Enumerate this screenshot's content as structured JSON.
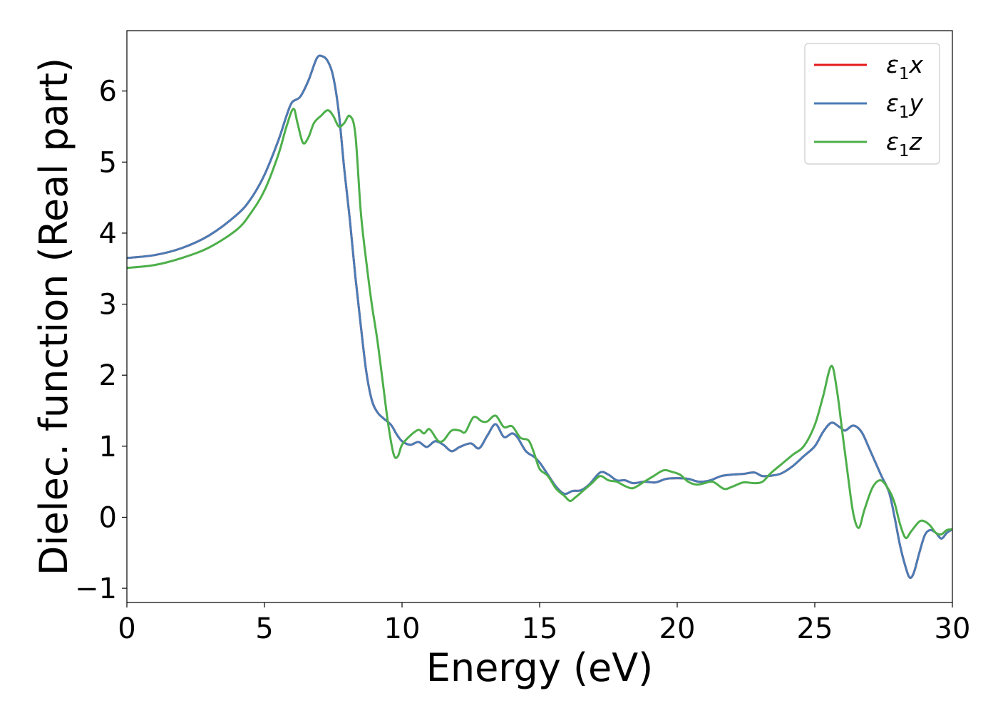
{
  "chart_data": {
    "type": "line",
    "xlabel": "Energy (eV)",
    "ylabel": "Dielec. function (Real part)",
    "xlim": [
      0,
      30
    ],
    "ylim": [
      -1.2,
      6.85
    ],
    "xticks": [
      0,
      5,
      10,
      15,
      20,
      25,
      30
    ],
    "yticks": [
      -1,
      0,
      1,
      2,
      3,
      4,
      5,
      6
    ],
    "xtick_labels": [
      "0",
      "5",
      "10",
      "15",
      "20",
      "25",
      "30"
    ],
    "ytick_labels": [
      "−1",
      "0",
      "1",
      "2",
      "3",
      "4",
      "5",
      "6"
    ],
    "grid": false,
    "legend_position": "top-right",
    "series": [
      {
        "name": "ε₁x",
        "legend_main": "ε",
        "legend_sub": "1",
        "legend_tail": "x",
        "color": "#e41a1c",
        "points": [
          [
            0,
            3.65
          ],
          [
            1,
            3.69
          ],
          [
            2,
            3.79
          ],
          [
            3,
            3.97
          ],
          [
            4,
            4.26
          ],
          [
            4.5,
            4.48
          ],
          [
            5,
            4.82
          ],
          [
            5.5,
            5.3
          ],
          [
            5.8,
            5.65
          ],
          [
            6,
            5.84
          ],
          [
            6.3,
            5.92
          ],
          [
            6.6,
            6.15
          ],
          [
            6.9,
            6.46
          ],
          [
            7.1,
            6.49
          ],
          [
            7.3,
            6.42
          ],
          [
            7.5,
            6.2
          ],
          [
            7.7,
            5.7
          ],
          [
            7.9,
            4.9
          ],
          [
            8.1,
            4.2
          ],
          [
            8.3,
            3.4
          ],
          [
            8.5,
            2.7
          ],
          [
            8.7,
            2.05
          ],
          [
            8.9,
            1.65
          ],
          [
            9.1,
            1.48
          ],
          [
            9.3,
            1.4
          ],
          [
            9.6,
            1.3
          ],
          [
            9.8,
            1.17
          ],
          [
            10,
            1.07
          ],
          [
            10.3,
            1.02
          ],
          [
            10.6,
            1.06
          ],
          [
            10.9,
            0.99
          ],
          [
            11.2,
            1.07
          ],
          [
            11.5,
            1.02
          ],
          [
            11.8,
            0.93
          ],
          [
            12.1,
            0.99
          ],
          [
            12.5,
            1.04
          ],
          [
            12.8,
            0.97
          ],
          [
            13.1,
            1.15
          ],
          [
            13.4,
            1.31
          ],
          [
            13.7,
            1.13
          ],
          [
            14,
            1.18
          ],
          [
            14.2,
            1.12
          ],
          [
            14.5,
            0.93
          ],
          [
            14.8,
            0.85
          ],
          [
            15,
            0.77
          ],
          [
            15.3,
            0.6
          ],
          [
            15.6,
            0.43
          ],
          [
            15.9,
            0.33
          ],
          [
            16.2,
            0.37
          ],
          [
            16.5,
            0.38
          ],
          [
            16.8,
            0.46
          ],
          [
            17.2,
            0.63
          ],
          [
            17.5,
            0.6
          ],
          [
            17.8,
            0.52
          ],
          [
            18.1,
            0.52
          ],
          [
            18.4,
            0.48
          ],
          [
            18.8,
            0.5
          ],
          [
            19.2,
            0.49
          ],
          [
            19.6,
            0.54
          ],
          [
            20,
            0.55
          ],
          [
            20.4,
            0.54
          ],
          [
            20.8,
            0.5
          ],
          [
            21.2,
            0.52
          ],
          [
            21.6,
            0.58
          ],
          [
            22,
            0.6
          ],
          [
            22.4,
            0.61
          ],
          [
            22.8,
            0.63
          ],
          [
            23.1,
            0.58
          ],
          [
            23.5,
            0.59
          ],
          [
            23.8,
            0.62
          ],
          [
            24.2,
            0.72
          ],
          [
            24.6,
            0.86
          ],
          [
            25,
            1.0
          ],
          [
            25.3,
            1.2
          ],
          [
            25.6,
            1.33
          ],
          [
            25.9,
            1.27
          ],
          [
            26.1,
            1.22
          ],
          [
            26.4,
            1.29
          ],
          [
            26.7,
            1.2
          ],
          [
            27,
            0.95
          ],
          [
            27.4,
            0.6
          ],
          [
            27.7,
            0.35
          ],
          [
            27.9,
            0.0
          ],
          [
            28.1,
            -0.4
          ],
          [
            28.3,
            -0.7
          ],
          [
            28.45,
            -0.85
          ],
          [
            28.6,
            -0.78
          ],
          [
            28.8,
            -0.5
          ],
          [
            29,
            -0.25
          ],
          [
            29.2,
            -0.18
          ],
          [
            29.4,
            -0.22
          ],
          [
            29.6,
            -0.3
          ],
          [
            29.8,
            -0.22
          ],
          [
            30,
            -0.17
          ]
        ]
      },
      {
        "name": "ε₁y",
        "legend_main": "ε",
        "legend_sub": "1",
        "legend_tail": "y",
        "color": "#4a7cb5",
        "points": [
          [
            0,
            3.65
          ],
          [
            1,
            3.69
          ],
          [
            2,
            3.79
          ],
          [
            3,
            3.97
          ],
          [
            4,
            4.26
          ],
          [
            4.5,
            4.48
          ],
          [
            5,
            4.82
          ],
          [
            5.5,
            5.3
          ],
          [
            5.8,
            5.65
          ],
          [
            6,
            5.84
          ],
          [
            6.3,
            5.92
          ],
          [
            6.6,
            6.15
          ],
          [
            6.9,
            6.46
          ],
          [
            7.1,
            6.49
          ],
          [
            7.3,
            6.42
          ],
          [
            7.5,
            6.2
          ],
          [
            7.7,
            5.7
          ],
          [
            7.9,
            4.9
          ],
          [
            8.1,
            4.2
          ],
          [
            8.3,
            3.4
          ],
          [
            8.5,
            2.7
          ],
          [
            8.7,
            2.05
          ],
          [
            8.9,
            1.65
          ],
          [
            9.1,
            1.48
          ],
          [
            9.3,
            1.4
          ],
          [
            9.6,
            1.3
          ],
          [
            9.8,
            1.17
          ],
          [
            10,
            1.07
          ],
          [
            10.3,
            1.02
          ],
          [
            10.6,
            1.06
          ],
          [
            10.9,
            0.99
          ],
          [
            11.2,
            1.07
          ],
          [
            11.5,
            1.02
          ],
          [
            11.8,
            0.93
          ],
          [
            12.1,
            0.99
          ],
          [
            12.5,
            1.04
          ],
          [
            12.8,
            0.97
          ],
          [
            13.1,
            1.15
          ],
          [
            13.4,
            1.31
          ],
          [
            13.7,
            1.13
          ],
          [
            14,
            1.18
          ],
          [
            14.2,
            1.12
          ],
          [
            14.5,
            0.93
          ],
          [
            14.8,
            0.85
          ],
          [
            15,
            0.77
          ],
          [
            15.3,
            0.6
          ],
          [
            15.6,
            0.43
          ],
          [
            15.9,
            0.33
          ],
          [
            16.2,
            0.37
          ],
          [
            16.5,
            0.38
          ],
          [
            16.8,
            0.46
          ],
          [
            17.2,
            0.63
          ],
          [
            17.5,
            0.6
          ],
          [
            17.8,
            0.52
          ],
          [
            18.1,
            0.52
          ],
          [
            18.4,
            0.48
          ],
          [
            18.8,
            0.5
          ],
          [
            19.2,
            0.49
          ],
          [
            19.6,
            0.54
          ],
          [
            20,
            0.55
          ],
          [
            20.4,
            0.54
          ],
          [
            20.8,
            0.5
          ],
          [
            21.2,
            0.52
          ],
          [
            21.6,
            0.58
          ],
          [
            22,
            0.6
          ],
          [
            22.4,
            0.61
          ],
          [
            22.8,
            0.63
          ],
          [
            23.1,
            0.58
          ],
          [
            23.5,
            0.59
          ],
          [
            23.8,
            0.62
          ],
          [
            24.2,
            0.72
          ],
          [
            24.6,
            0.86
          ],
          [
            25,
            1.0
          ],
          [
            25.3,
            1.2
          ],
          [
            25.6,
            1.33
          ],
          [
            25.9,
            1.27
          ],
          [
            26.1,
            1.22
          ],
          [
            26.4,
            1.29
          ],
          [
            26.7,
            1.2
          ],
          [
            27,
            0.95
          ],
          [
            27.4,
            0.6
          ],
          [
            27.7,
            0.35
          ],
          [
            27.9,
            0.0
          ],
          [
            28.1,
            -0.4
          ],
          [
            28.3,
            -0.7
          ],
          [
            28.45,
            -0.85
          ],
          [
            28.6,
            -0.78
          ],
          [
            28.8,
            -0.5
          ],
          [
            29,
            -0.25
          ],
          [
            29.2,
            -0.18
          ],
          [
            29.4,
            -0.22
          ],
          [
            29.6,
            -0.3
          ],
          [
            29.8,
            -0.22
          ],
          [
            30,
            -0.17
          ]
        ]
      },
      {
        "name": "ε₁z",
        "legend_main": "ε",
        "legend_sub": "1",
        "legend_tail": "z",
        "color": "#4daf4a",
        "points": [
          [
            0,
            3.51
          ],
          [
            1,
            3.55
          ],
          [
            2,
            3.65
          ],
          [
            3,
            3.8
          ],
          [
            4,
            4.05
          ],
          [
            4.5,
            4.28
          ],
          [
            5,
            4.6
          ],
          [
            5.5,
            5.1
          ],
          [
            5.8,
            5.5
          ],
          [
            6.05,
            5.75
          ],
          [
            6.2,
            5.55
          ],
          [
            6.4,
            5.27
          ],
          [
            6.6,
            5.35
          ],
          [
            6.8,
            5.55
          ],
          [
            7.05,
            5.65
          ],
          [
            7.3,
            5.73
          ],
          [
            7.5,
            5.65
          ],
          [
            7.7,
            5.5
          ],
          [
            7.9,
            5.55
          ],
          [
            8.1,
            5.65
          ],
          [
            8.3,
            5.4
          ],
          [
            8.5,
            4.3
          ],
          [
            8.7,
            3.6
          ],
          [
            8.9,
            3.0
          ],
          [
            9.1,
            2.5
          ],
          [
            9.3,
            1.9
          ],
          [
            9.5,
            1.3
          ],
          [
            9.7,
            0.88
          ],
          [
            9.85,
            0.86
          ],
          [
            10,
            1.02
          ],
          [
            10.3,
            1.15
          ],
          [
            10.6,
            1.23
          ],
          [
            10.8,
            1.18
          ],
          [
            11,
            1.24
          ],
          [
            11.3,
            1.08
          ],
          [
            11.5,
            1.08
          ],
          [
            11.8,
            1.22
          ],
          [
            12.1,
            1.22
          ],
          [
            12.3,
            1.2
          ],
          [
            12.6,
            1.41
          ],
          [
            12.9,
            1.35
          ],
          [
            13.1,
            1.35
          ],
          [
            13.4,
            1.43
          ],
          [
            13.7,
            1.27
          ],
          [
            14,
            1.28
          ],
          [
            14.3,
            1.12
          ],
          [
            14.6,
            1.08
          ],
          [
            14.8,
            0.9
          ],
          [
            15,
            0.68
          ],
          [
            15.3,
            0.58
          ],
          [
            15.6,
            0.4
          ],
          [
            15.9,
            0.3
          ],
          [
            16.1,
            0.23
          ],
          [
            16.3,
            0.28
          ],
          [
            16.6,
            0.38
          ],
          [
            16.9,
            0.48
          ],
          [
            17.2,
            0.58
          ],
          [
            17.5,
            0.52
          ],
          [
            17.8,
            0.5
          ],
          [
            18.1,
            0.44
          ],
          [
            18.4,
            0.41
          ],
          [
            18.8,
            0.5
          ],
          [
            19.1,
            0.57
          ],
          [
            19.5,
            0.66
          ],
          [
            19.8,
            0.64
          ],
          [
            20.1,
            0.6
          ],
          [
            20.4,
            0.5
          ],
          [
            20.7,
            0.46
          ],
          [
            21,
            0.48
          ],
          [
            21.3,
            0.5
          ],
          [
            21.7,
            0.4
          ],
          [
            22,
            0.43
          ],
          [
            22.4,
            0.49
          ],
          [
            22.8,
            0.48
          ],
          [
            23.1,
            0.5
          ],
          [
            23.4,
            0.62
          ],
          [
            23.8,
            0.75
          ],
          [
            24.2,
            0.88
          ],
          [
            24.6,
            1.0
          ],
          [
            25,
            1.3
          ],
          [
            25.3,
            1.7
          ],
          [
            25.6,
            2.13
          ],
          [
            25.8,
            1.8
          ],
          [
            26,
            1.2
          ],
          [
            26.2,
            0.6
          ],
          [
            26.4,
            0.05
          ],
          [
            26.6,
            -0.15
          ],
          [
            26.8,
            0.1
          ],
          [
            27.1,
            0.42
          ],
          [
            27.4,
            0.52
          ],
          [
            27.7,
            0.38
          ],
          [
            27.9,
            0.2
          ],
          [
            28.1,
            -0.1
          ],
          [
            28.3,
            -0.29
          ],
          [
            28.5,
            -0.2
          ],
          [
            28.8,
            -0.06
          ],
          [
            29,
            -0.06
          ],
          [
            29.2,
            -0.12
          ],
          [
            29.4,
            -0.22
          ],
          [
            29.6,
            -0.24
          ],
          [
            29.8,
            -0.18
          ],
          [
            30,
            -0.17
          ]
        ]
      }
    ]
  }
}
